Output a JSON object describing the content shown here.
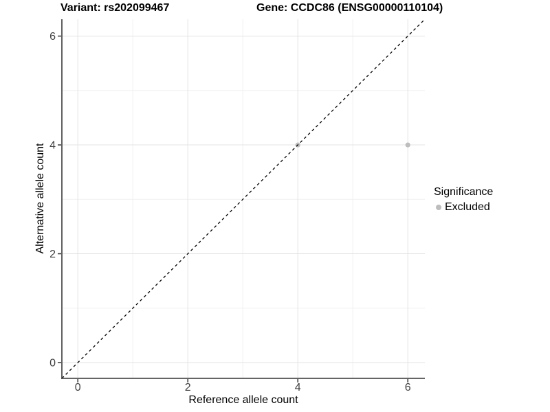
{
  "header": {
    "variant_title": "Variant: rs202099467",
    "gene_title": "Gene: CCDC86 (ENSG00000110104)"
  },
  "legend": {
    "title": "Significance",
    "items": [
      {
        "label": "Excluded",
        "color": "#bdbdbd",
        "marker": "dot-icon"
      }
    ]
  },
  "chart_data": {
    "type": "scatter",
    "titles": {
      "left": "Variant: rs202099467",
      "right": "Gene: CCDC86 (ENSG00000110104)"
    },
    "xlabel": "Reference allele count",
    "ylabel": "Alternative allele count",
    "xlim": [
      -0.29,
      6.31
    ],
    "ylim": [
      -0.29,
      6.31
    ],
    "x_ticks": [
      0,
      2,
      4,
      6
    ],
    "y_ticks": [
      0,
      2,
      4,
      6
    ],
    "x_minor_ticks": [
      1,
      3,
      5
    ],
    "y_minor_ticks": [
      1,
      3,
      5
    ],
    "grid": "major+minor",
    "legend_position": "right",
    "reference_line": {
      "slope": 1,
      "intercept": 0,
      "style": "dashed",
      "color": "#000000"
    },
    "series": [
      {
        "name": "Excluded",
        "color": "#bdbdbd",
        "points": [
          [
            4,
            4
          ],
          [
            6,
            4
          ]
        ]
      }
    ],
    "colors": {
      "background": "#ffffff",
      "grid_major": "#e3e3e3",
      "grid_minor": "#f0f0f0",
      "axis_line": "#4f4f4f",
      "tick_mark": "#333333",
      "tick_label": "#404040"
    }
  }
}
